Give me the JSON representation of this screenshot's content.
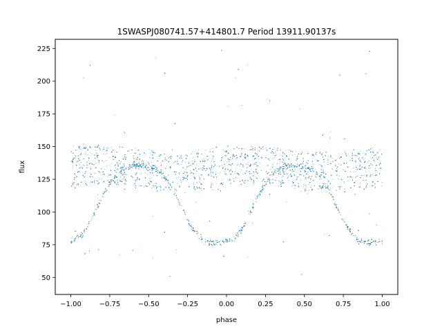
{
  "chart_data": {
    "type": "scatter",
    "title": "1SWASPJ080741.57+414801.7 Period 13911.90137s",
    "xlabel": "phase",
    "ylabel": "flux",
    "xlim": [
      -1.1,
      1.1
    ],
    "ylim": [
      37,
      232
    ],
    "xticks": [
      -1.0,
      -0.75,
      -0.5,
      -0.25,
      0.0,
      0.25,
      0.5,
      0.75,
      1.0
    ],
    "xtick_labels": [
      "−1.00",
      "−0.75",
      "−0.50",
      "−0.25",
      "0.00",
      "0.25",
      "0.50",
      "0.75",
      "1.00"
    ],
    "yticks": [
      50,
      75,
      100,
      125,
      150,
      175,
      200,
      225
    ],
    "ytick_labels": [
      "50",
      "75",
      "100",
      "125",
      "150",
      "175",
      "200",
      "225"
    ],
    "grid": false,
    "legend": "none",
    "point_color": "#1f77b4",
    "series": [
      {
        "description": "folded light curve, phase domain -1 to 1",
        "template_phase": [
          0.0,
          0.05,
          0.1,
          0.15,
          0.2,
          0.25,
          0.3,
          0.35,
          0.4,
          0.45,
          0.5,
          0.55,
          0.6,
          0.65,
          0.7,
          0.75,
          0.8,
          0.85,
          0.9,
          0.95,
          1.0
        ],
        "dip_flux": [
          78,
          80,
          88,
          100,
          112,
          122,
          130,
          134,
          136,
          136,
          135,
          133,
          128,
          118,
          106,
          94,
          84,
          78,
          77,
          77,
          78
        ],
        "band_flux_levels": [
          146,
          140,
          134,
          128,
          121
        ],
        "flux_range": [
          47,
          224
        ]
      }
    ]
  }
}
